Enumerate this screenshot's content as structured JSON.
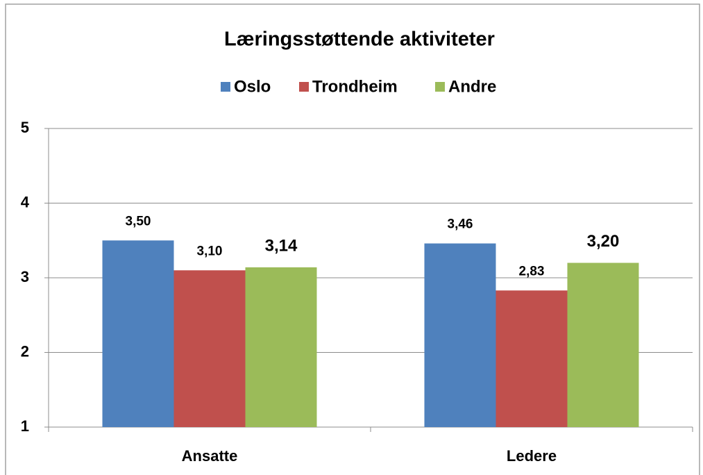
{
  "chart_data": {
    "type": "bar",
    "title": "Læringsstøttende aktiviteter",
    "categories": [
      "Ansatte",
      "Ledere"
    ],
    "series": [
      {
        "name": "Oslo",
        "color": "#4f81bd",
        "values": [
          3.5,
          3.46
        ],
        "value_labels": [
          "3,50",
          "3,46"
        ]
      },
      {
        "name": "Trondheim",
        "color": "#c0504d",
        "values": [
          3.1,
          2.83
        ],
        "value_labels": [
          "3,10",
          "2,83"
        ]
      },
      {
        "name": "Andre",
        "color": "#9bbb59",
        "values": [
          3.14,
          3.2
        ],
        "value_labels": [
          "3,14",
          "3,20"
        ]
      }
    ],
    "ylim": [
      1,
      5
    ],
    "yticks": [
      1,
      2,
      3,
      4,
      5
    ],
    "grid": true,
    "legend": "top"
  }
}
